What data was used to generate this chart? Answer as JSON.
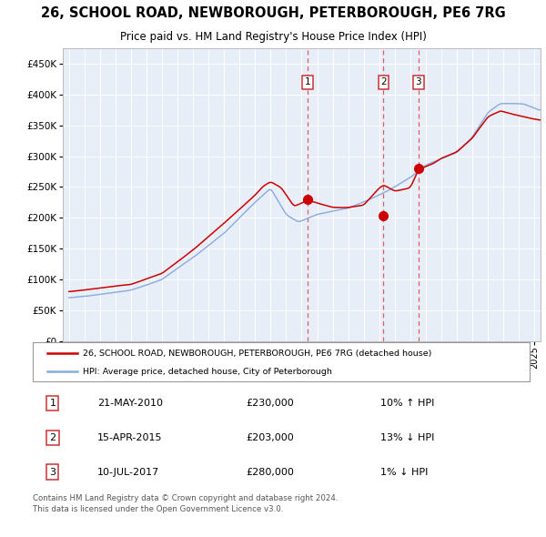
{
  "title": "26, SCHOOL ROAD, NEWBOROUGH, PETERBOROUGH, PE6 7RG",
  "subtitle": "Price paid vs. HM Land Registry's House Price Index (HPI)",
  "sale_label": "26, SCHOOL ROAD, NEWBOROUGH, PETERBOROUGH, PE6 7RG (detached house)",
  "hpi_label": "HPI: Average price, detached house, City of Peterborough",
  "transactions": [
    {
      "num": 1,
      "date": "21-MAY-2010",
      "price": "£230,000",
      "pct": "10%",
      "dir": "↑",
      "rel": "HPI"
    },
    {
      "num": 2,
      "date": "15-APR-2015",
      "price": "£203,000",
      "pct": "13%",
      "dir": "↓",
      "rel": "HPI"
    },
    {
      "num": 3,
      "date": "10-JUL-2017",
      "price": "£280,000",
      "pct": "1%",
      "dir": "↓",
      "rel": "HPI"
    }
  ],
  "transaction_dates_decimal": [
    2010.39,
    2015.28,
    2017.53
  ],
  "transaction_prices": [
    230000,
    203000,
    280000
  ],
  "ylim": [
    0,
    475000
  ],
  "yticks": [
    0,
    50000,
    100000,
    150000,
    200000,
    250000,
    300000,
    350000,
    400000,
    450000
  ],
  "xlim_left": 1994.6,
  "xlim_right": 2025.4,
  "background_color": "#ffffff",
  "plot_bg_color": "#e8eef8",
  "grid_color": "#ffffff",
  "sale_line_color": "#cc0000",
  "hpi_line_color": "#88aadd",
  "marker_sale_color": "#cc0000",
  "vline_color": "#dd4444",
  "footnote": "Contains HM Land Registry data © Crown copyright and database right 2024.\nThis data is licensed under the Open Government Licence v3.0."
}
